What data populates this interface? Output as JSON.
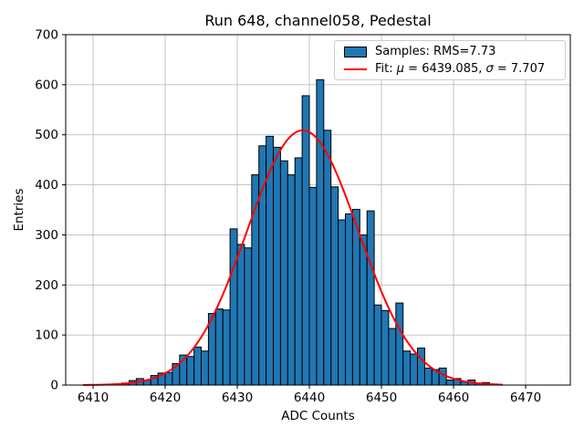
{
  "page": {
    "background": "#ffffff"
  },
  "chart_data": {
    "type": "bar",
    "subtype": "histogram-with-gaussian-fit",
    "title": "Run 648, channel058, Pedestal",
    "xlabel": "ADC Counts",
    "ylabel": "Entries",
    "xlim": [
      6406.2,
      6476.2
    ],
    "ylim": [
      0,
      700
    ],
    "xticks": [
      6410,
      6420,
      6430,
      6440,
      6450,
      6460,
      6470
    ],
    "yticks": [
      0,
      100,
      200,
      300,
      400,
      500,
      600,
      700
    ],
    "grid": true,
    "legend_position": "upper right",
    "bar_color": "#1f77b4",
    "bar_edge_color": "#000000",
    "fit_color": "#ff0000",
    "grid_color": "#bdbdbd",
    "spine_color": "#000000",
    "bin_width": 1,
    "bin_start": 6414,
    "counts": [
      4,
      9,
      13,
      10,
      19,
      24,
      25,
      43,
      60,
      57,
      76,
      68,
      143,
      152,
      150,
      312,
      281,
      274,
      420,
      478,
      497,
      475,
      448,
      420,
      454,
      578,
      395,
      610,
      509,
      396,
      330,
      342,
      351,
      300,
      348,
      160,
      149,
      113,
      164,
      68,
      62,
      74,
      34,
      31,
      34,
      10,
      13,
      7,
      10,
      4,
      5,
      2
    ],
    "samples_rms": 7.73,
    "fit": {
      "mu": 6439.085,
      "sigma": 7.707,
      "amplitude": 509,
      "x_min": 6408.6,
      "x_max": 6467.0
    },
    "legend": {
      "samples_label": "Samples: RMS=7.73",
      "fit_pre": "Fit: ",
      "fit_mu_symbol": "μ",
      "fit_mu_text": " = 6439.085, ",
      "fit_sigma_symbol": "σ",
      "fit_sigma_text": " = 7.707"
    }
  }
}
